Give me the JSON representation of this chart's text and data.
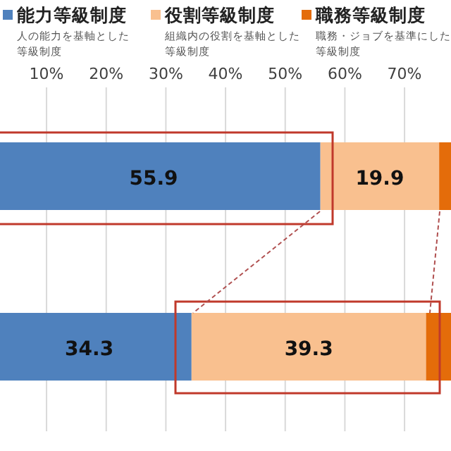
{
  "chart_data": {
    "type": "bar",
    "orientation": "horizontal",
    "stacked": true,
    "categories": [
      null,
      null
    ],
    "series": [
      {
        "name": "能力等級制度",
        "color": "#4f81bd",
        "values": [
          55.9,
          34.3
        ],
        "value_labels": [
          "55.9",
          "34.3"
        ]
      },
      {
        "name": "役割等級制度",
        "color": "#f9c08f",
        "values": [
          19.9,
          39.3
        ],
        "value_labels": [
          "19.9",
          "39.3"
        ]
      },
      {
        "name": "職務等級制度",
        "color": "#e46c0a",
        "values": [
          2.2,
          4.4
        ]
      }
    ],
    "annotations": [
      "人の能力を基軸とした等級制度",
      "組織内の役割を基軸とした等級制度",
      "職務・ジョブを基準にした等級制度"
    ],
    "xlim": [
      0,
      78
    ],
    "xticks": [
      {
        "value": 10,
        "label": "10%"
      },
      {
        "value": 20,
        "label": "20%"
      },
      {
        "value": 30,
        "label": "30%"
      },
      {
        "value": 40,
        "label": "40%"
      },
      {
        "value": 50,
        "label": "50%"
      },
      {
        "value": 60,
        "label": "60%"
      },
      {
        "value": 70,
        "label": "70%"
      }
    ],
    "grid": "x",
    "legend": "top"
  }
}
